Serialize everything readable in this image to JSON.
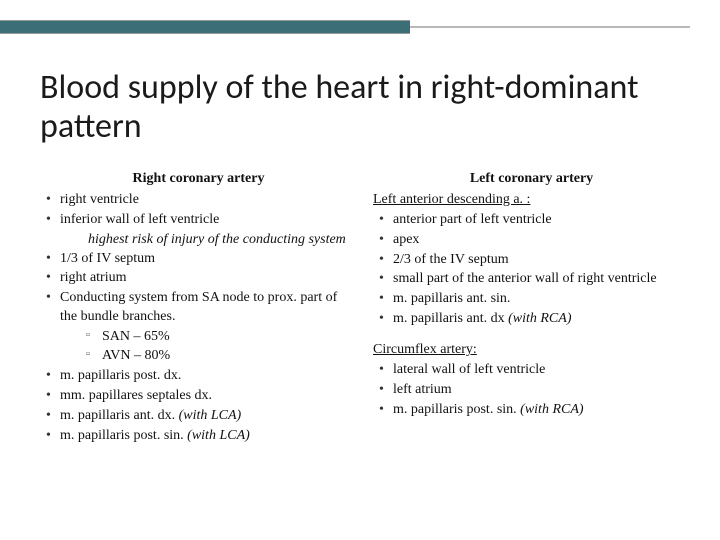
{
  "colors": {
    "accent": "#3b6e76",
    "background": "#ffffff",
    "text": "#111111"
  },
  "title": "Blood supply of the heart in right-dominant pattern",
  "left_col": {
    "heading": "Right coronary artery",
    "items": {
      "b1": "right ventricle",
      "b2": "inferior wall of left ventricle",
      "b2_note": "highest risk of injury of the conducting system",
      "b3": "1/3 of IV septum",
      "b4": "right atrium",
      "b5": "Conducting system from SA node to prox. part of the bundle branches.",
      "b5_sub1": "SAN – 65%",
      "b5_sub2": "AVN – 80%",
      "b6": "m. papillaris post. dx.",
      "b7": "mm. papillares septales dx.",
      "b8_pre": "m. papillaris ant. dx. ",
      "b8_ital": "(with LCA)",
      "b9_pre": "m. papillaris post. sin. ",
      "b9_ital": "(with LCA)"
    }
  },
  "right_col": {
    "heading": "Left coronary artery",
    "lad_heading": "Left anterior descending a. :",
    "lad": {
      "b1": "anterior part of left ventricle",
      "b2": "apex",
      "b3": "2/3 of the IV septum",
      "b4": "small part of the anterior wall of right ventricle",
      "b5": "m. papillaris ant. sin.",
      "b6_pre": "m. papillaris ant. dx ",
      "b6_ital": "(with RCA)"
    },
    "cx_heading": "Circumflex artery:",
    "cx": {
      "b1": "lateral wall of left ventricle",
      "b2": "left atrium",
      "b3_pre": "m. papillaris post. sin. ",
      "b3_ital": "(with RCA)"
    }
  }
}
